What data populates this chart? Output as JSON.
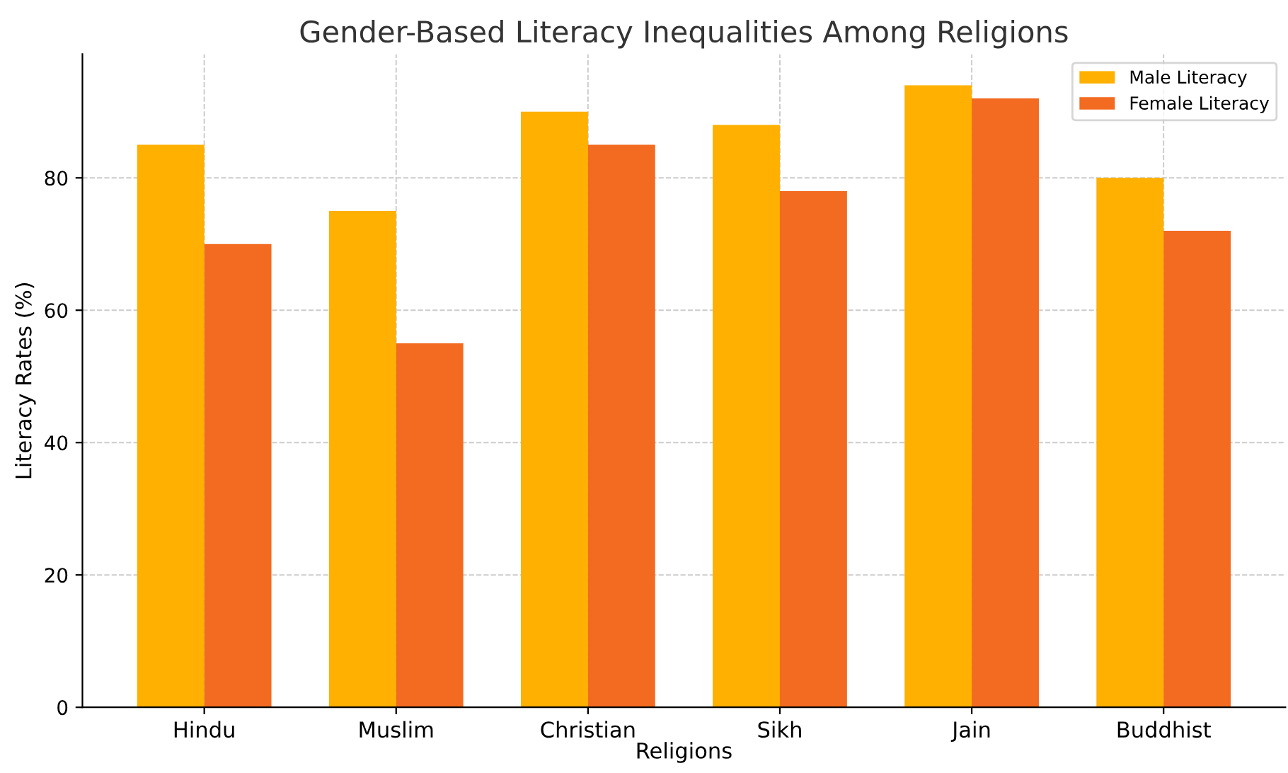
{
  "chart_data": {
    "type": "bar",
    "title": "Gender-Based Literacy Inequalities Among Religions",
    "xlabel": "Religions",
    "ylabel": "Literacy Rates (%)",
    "categories": [
      "Hindu",
      "Muslim",
      "Christian",
      "Sikh",
      "Jain",
      "Buddhist"
    ],
    "series": [
      {
        "name": "Male Literacy",
        "color": "#ffb000",
        "values": [
          85,
          75,
          90,
          88,
          94,
          80
        ]
      },
      {
        "name": "Female Literacy",
        "color": "#f26b21",
        "values": [
          70,
          55,
          85,
          78,
          92,
          72
        ]
      }
    ],
    "ylim": [
      0,
      98.7
    ],
    "yticks": [
      0,
      20,
      40,
      60,
      80
    ],
    "grid": true,
    "legend": "top right"
  }
}
